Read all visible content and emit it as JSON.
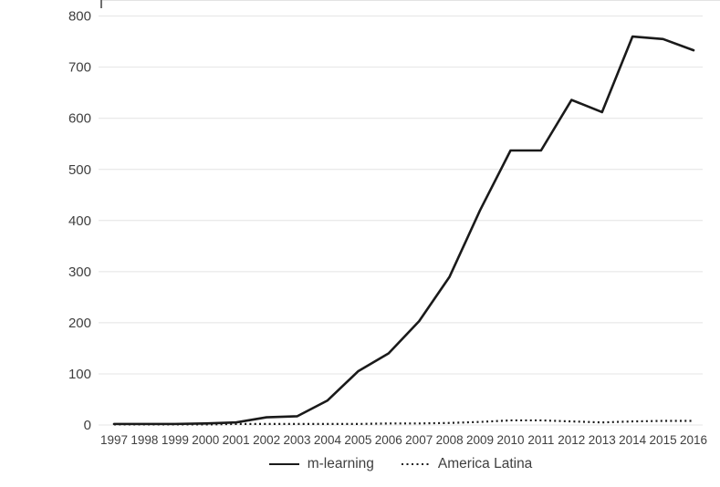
{
  "chart_data": {
    "type": "line",
    "x": [
      1997,
      1998,
      1999,
      2000,
      2001,
      2002,
      2003,
      2004,
      2005,
      2006,
      2007,
      2008,
      2009,
      2010,
      2011,
      2012,
      2013,
      2014,
      2015,
      2016
    ],
    "series": [
      {
        "name": "m-learning",
        "style": "solid",
        "values": [
          2,
          2,
          2,
          3,
          5,
          15,
          17,
          48,
          105,
          140,
          203,
          290,
          420,
          537,
          537,
          636,
          612,
          760,
          755,
          733
        ]
      },
      {
        "name": "America Latina",
        "style": "dotted",
        "values": [
          1,
          1,
          1,
          1,
          2,
          2,
          2,
          2,
          2,
          3,
          3,
          4,
          6,
          9,
          9,
          7,
          5,
          7,
          8,
          8
        ]
      }
    ],
    "title": "",
    "xlabel": "",
    "ylabel": "",
    "ylim": [
      0,
      800
    ],
    "yticks": [
      0,
      100,
      200,
      300,
      400,
      500,
      600,
      700,
      800
    ],
    "grid": true,
    "legend_position": "bottom-center",
    "colors": {
      "line": "#1a1a1a",
      "text": "#3f3f3f",
      "grid": "#e4e4e4"
    }
  }
}
